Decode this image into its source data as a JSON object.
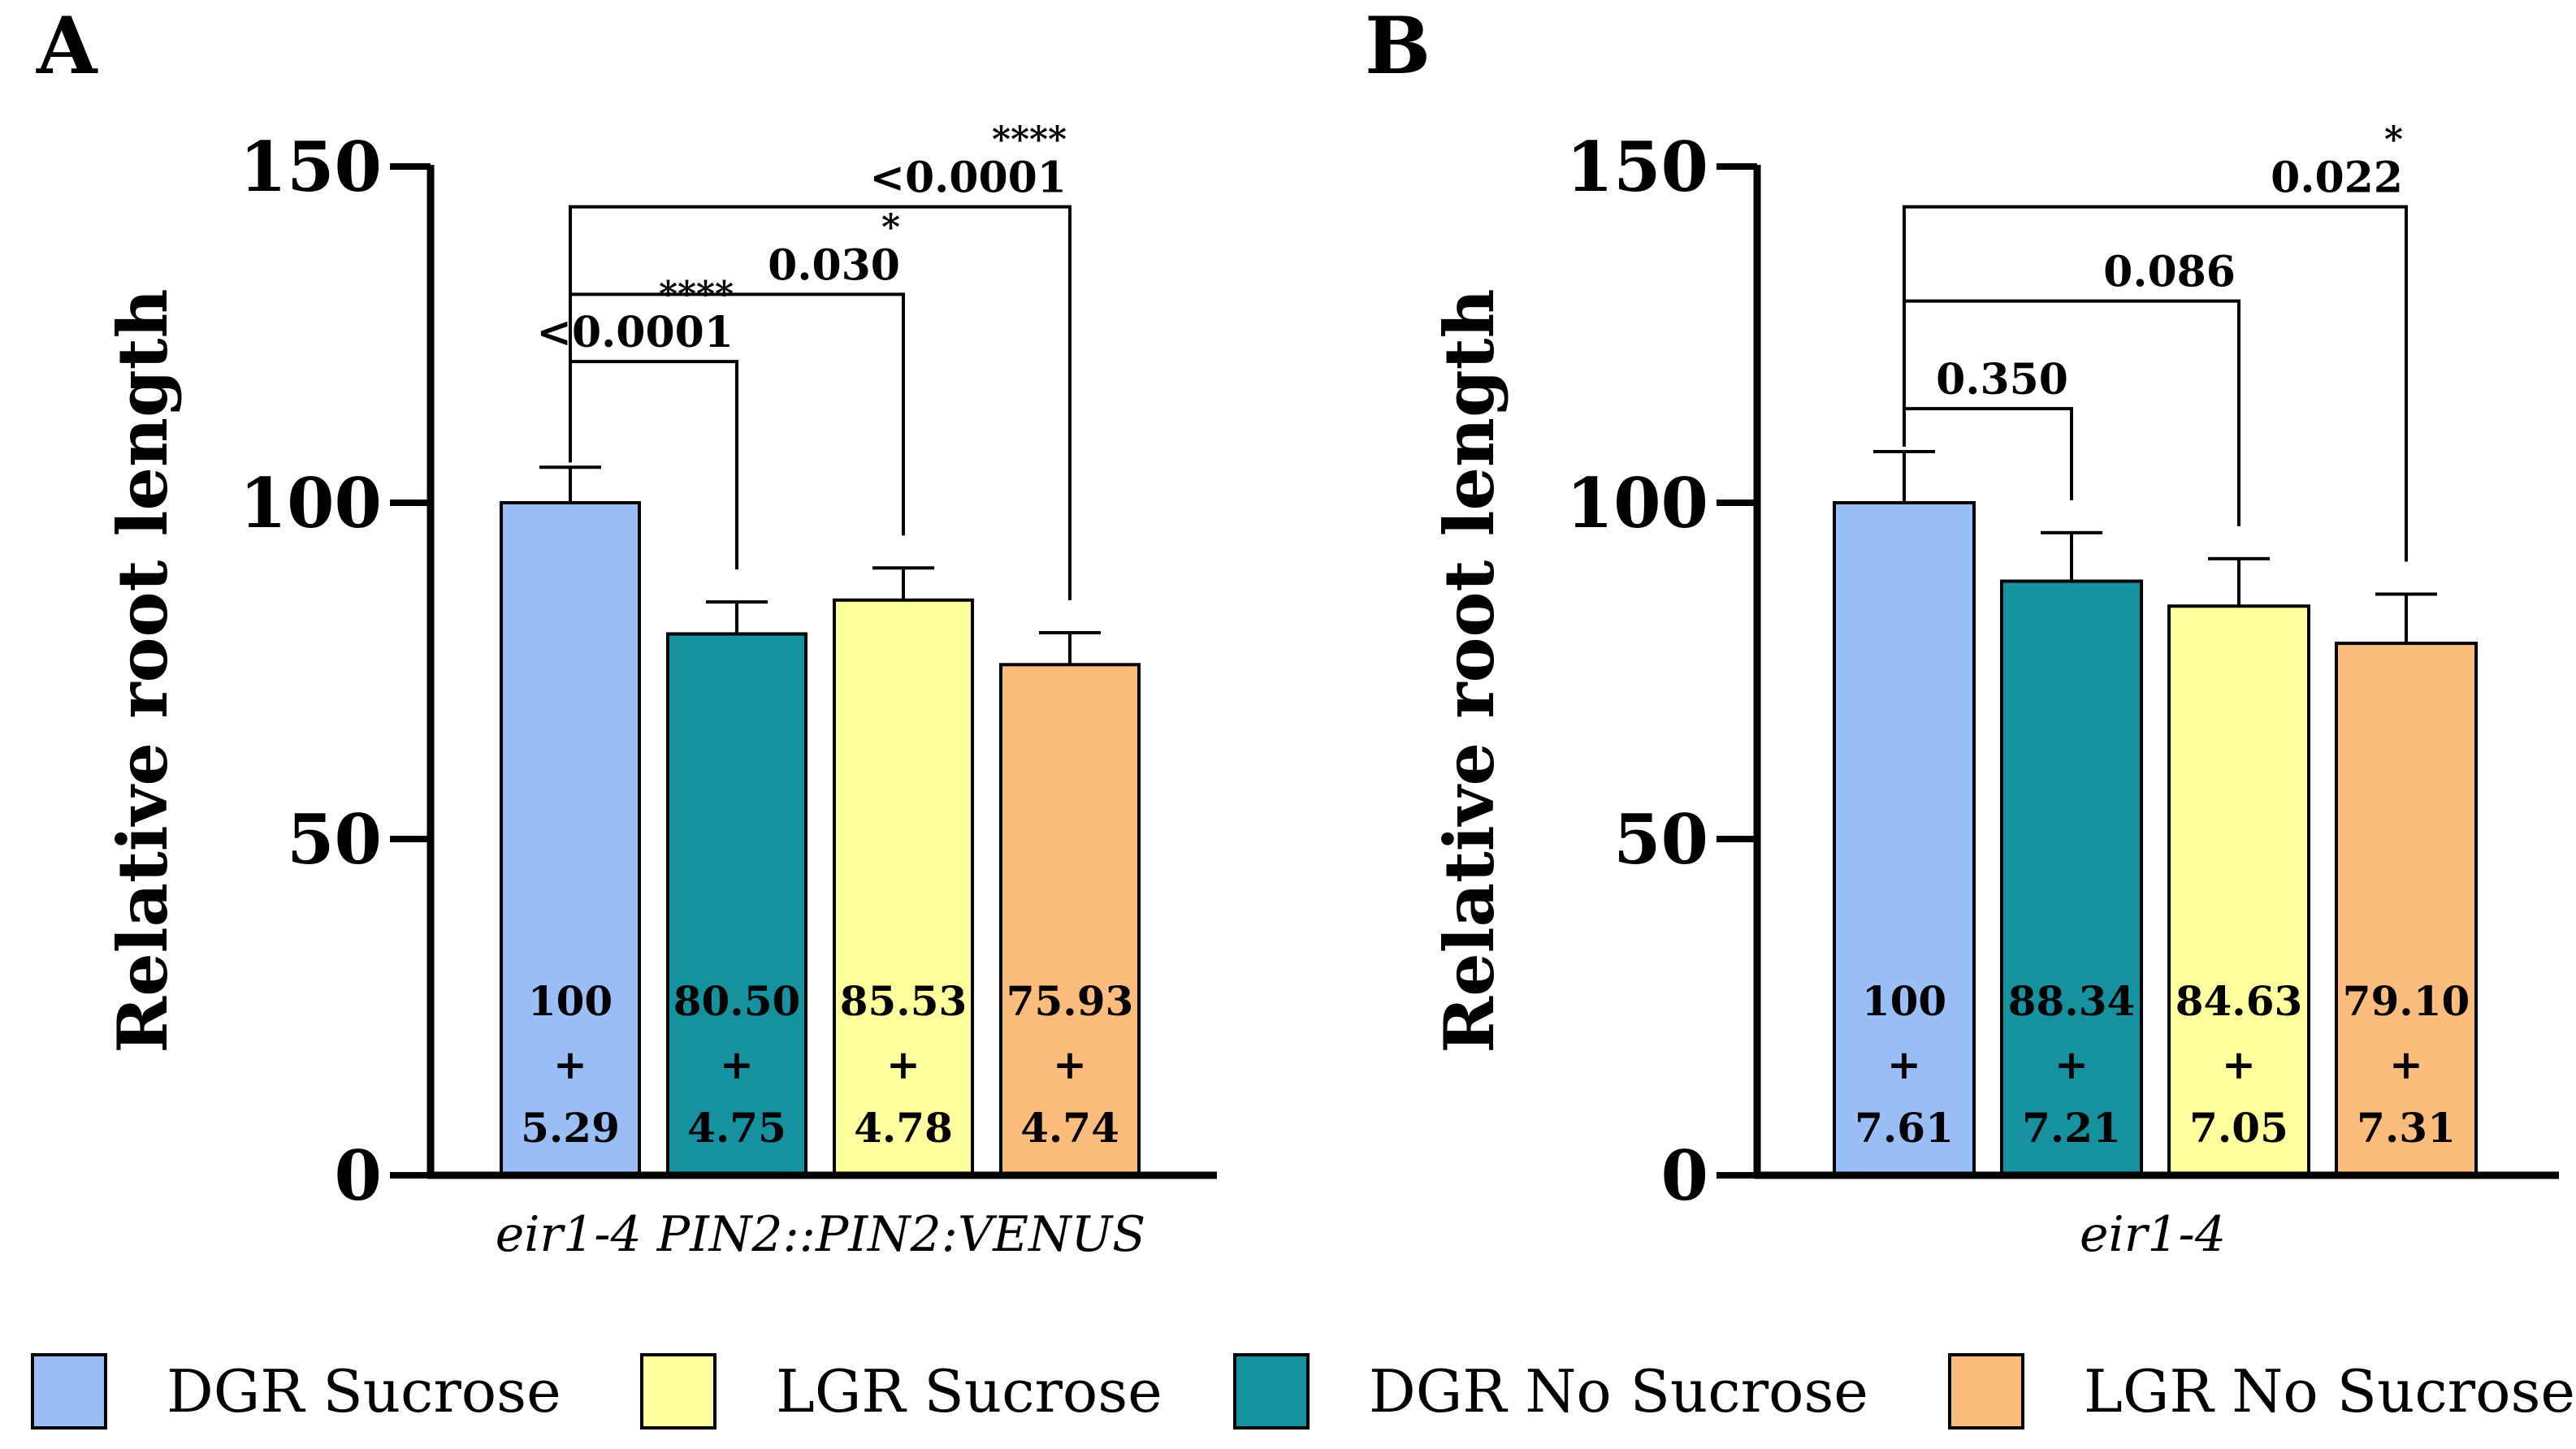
{
  "colors": {
    "dgr_sucrose": "#9ABEF6",
    "dgr_no_sucrose": "#15919F",
    "lgr_sucrose": "#FFFF9E",
    "lgr_no_sucrose": "#FCBD7C",
    "axis": "#000000"
  },
  "legend": [
    {
      "label": "DGR Sucrose",
      "color_key": "dgr_sucrose"
    },
    {
      "label": "LGR Sucrose",
      "color_key": "lgr_sucrose"
    },
    {
      "label": "DGR No Sucrose",
      "color_key": "dgr_no_sucrose"
    },
    {
      "label": "LGR No Sucrose",
      "color_key": "lgr_no_sucrose"
    }
  ],
  "chart_data": [
    {
      "type": "bar",
      "panel_label": "A",
      "title": "",
      "ylabel": "Relative root length",
      "xlabel": "eir1-4 PIN2::PIN2:VENUS",
      "ylim": [
        0,
        150
      ],
      "yticks": [
        "0",
        "50",
        "100",
        "150"
      ],
      "categories": [
        "DGR Sucrose",
        "DGR No Sucrose",
        "LGR Sucrose",
        "LGR No Sucrose"
      ],
      "color_keys": [
        "dgr_sucrose",
        "dgr_no_sucrose",
        "lgr_sucrose",
        "lgr_no_sucrose"
      ],
      "values": [
        100,
        80.5,
        85.53,
        75.93
      ],
      "errors": [
        5.29,
        4.75,
        4.78,
        4.74
      ],
      "value_labels": [
        {
          "mean": "100",
          "pm": "+",
          "sd": "5.29"
        },
        {
          "mean": "80.50",
          "pm": "+",
          "sd": "4.75"
        },
        {
          "mean": "85.53",
          "pm": "+",
          "sd": "4.78"
        },
        {
          "mean": "75.93",
          "pm": "+",
          "sd": "4.74"
        }
      ],
      "comparisons": [
        {
          "from": 0,
          "to": 1,
          "p": "<0.0001",
          "stars": "****",
          "level": 121
        },
        {
          "from": 0,
          "to": 2,
          "p": "0.030",
          "stars": "*",
          "level": 131
        },
        {
          "from": 0,
          "to": 3,
          "p": "<0.0001",
          "stars": "****",
          "level": 144
        }
      ]
    },
    {
      "type": "bar",
      "panel_label": "B",
      "title": "",
      "ylabel": "Relative root length",
      "xlabel": "eir1-4",
      "ylim": [
        0,
        150
      ],
      "yticks": [
        "0",
        "50",
        "100",
        "150"
      ],
      "categories": [
        "DGR Sucrose",
        "DGR No Sucrose",
        "LGR Sucrose",
        "LGR No Sucrose"
      ],
      "color_keys": [
        "dgr_sucrose",
        "dgr_no_sucrose",
        "lgr_sucrose",
        "lgr_no_sucrose"
      ],
      "values": [
        100,
        88.34,
        84.63,
        79.1
      ],
      "errors": [
        7.61,
        7.21,
        7.05,
        7.31
      ],
      "value_labels": [
        {
          "mean": "100",
          "pm": "+",
          "sd": "7.61"
        },
        {
          "mean": "88.34",
          "pm": "+",
          "sd": "7.21"
        },
        {
          "mean": "84.63",
          "pm": "+",
          "sd": "7.05"
        },
        {
          "mean": "79.10",
          "pm": "+",
          "sd": "7.31"
        }
      ],
      "comparisons": [
        {
          "from": 0,
          "to": 1,
          "p": "0.350",
          "stars": "",
          "level": 114
        },
        {
          "from": 0,
          "to": 2,
          "p": "0.086",
          "stars": "",
          "level": 130
        },
        {
          "from": 0,
          "to": 3,
          "p": "0.022",
          "stars": "*",
          "level": 144
        }
      ]
    }
  ]
}
